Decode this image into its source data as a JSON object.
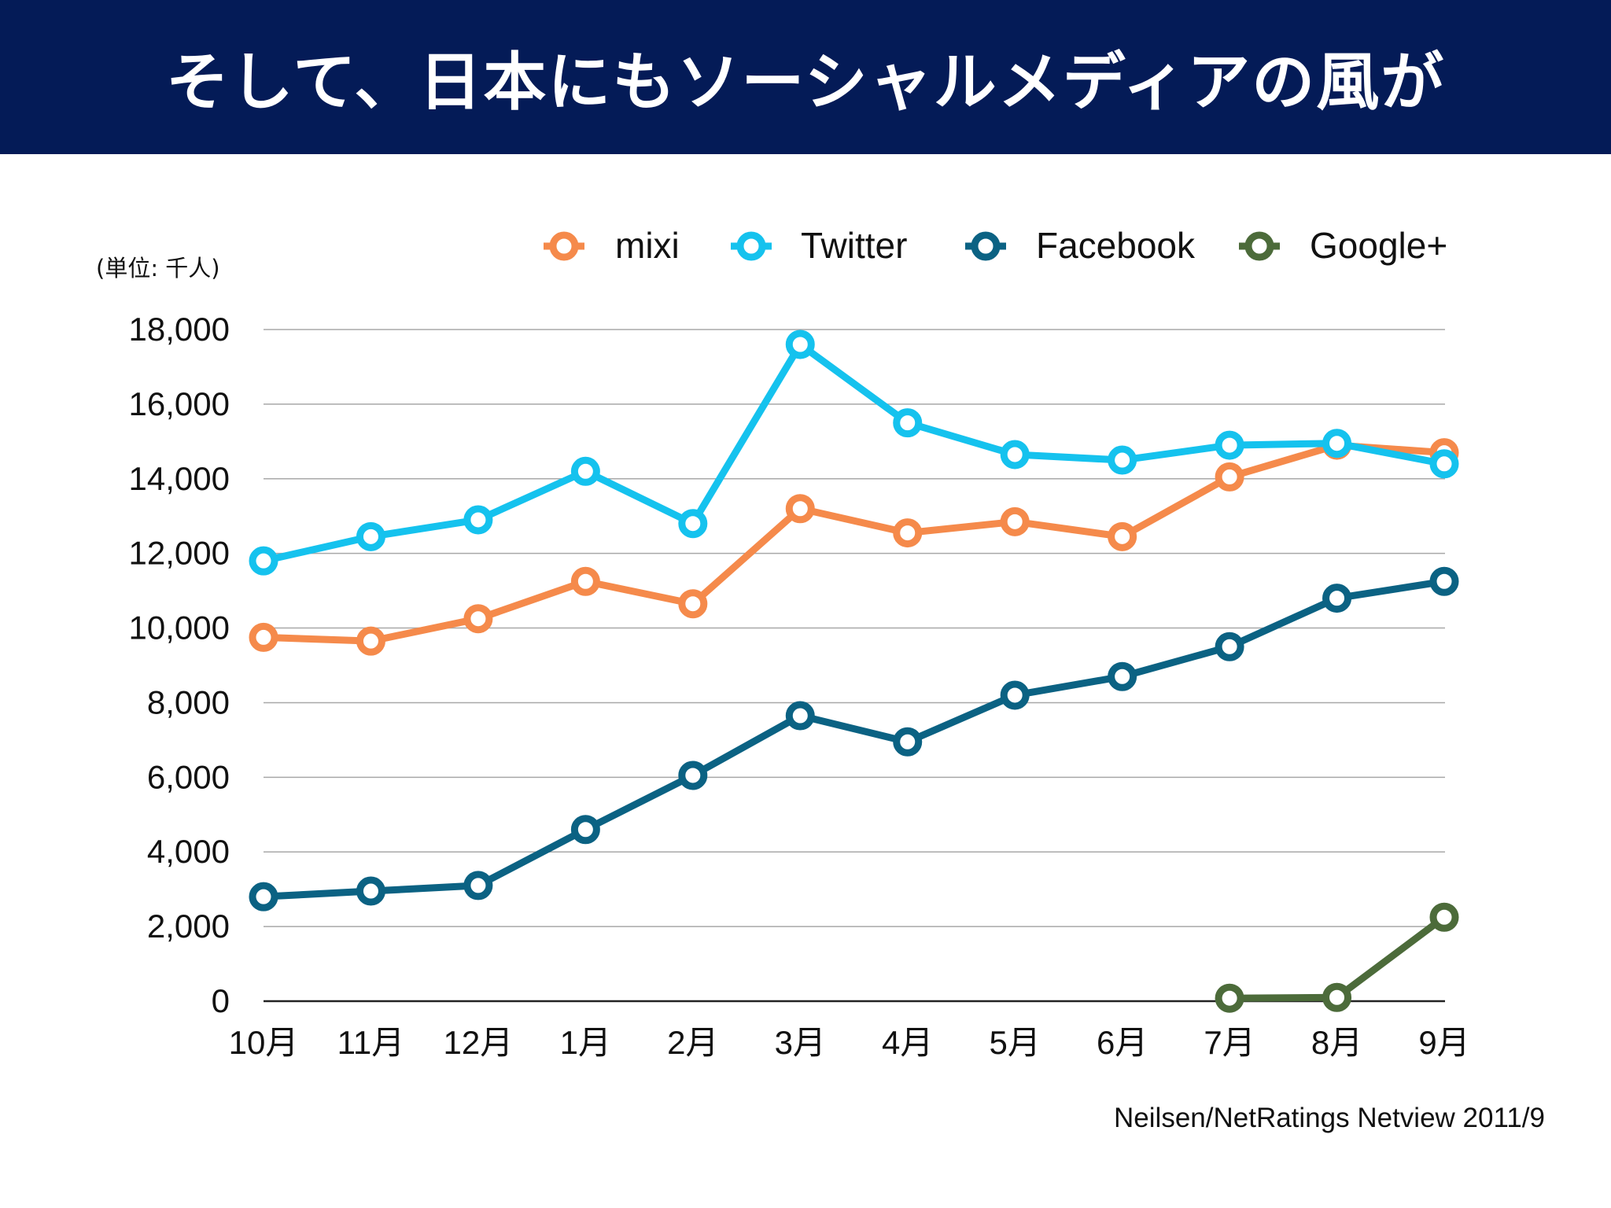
{
  "header": {
    "title": "そして、日本にもソーシャルメディアの風が"
  },
  "unit_label": "(単位: 千人)",
  "source": "Neilsen/NetRatings Netview 2011/9",
  "colors": {
    "header_bg": "#041b57",
    "mixi": "#f58a4b",
    "Twitter": "#15c2ee",
    "Facebook": "#0b6283",
    "Google+": "#4c6b3a"
  },
  "chart_data": {
    "type": "line",
    "categories": [
      "10月",
      "11月",
      "12月",
      "1月",
      "2月",
      "3月",
      "4月",
      "5月",
      "6月",
      "7月",
      "8月",
      "9月"
    ],
    "ylim": [
      0,
      18000
    ],
    "yticks": [
      0,
      2000,
      4000,
      6000,
      8000,
      10000,
      12000,
      14000,
      16000,
      18000
    ],
    "ytick_labels": [
      "0",
      "2,000",
      "4,000",
      "6,000",
      "8,000",
      "10,000",
      "12,000",
      "14,000",
      "16,000",
      "18,000"
    ],
    "grid": true,
    "legend_position": "top-right",
    "series": [
      {
        "name": "mixi",
        "color": "#f58a4b",
        "values": [
          9750,
          9650,
          10250,
          11250,
          10650,
          13200,
          12550,
          12850,
          12450,
          14050,
          14900,
          14700
        ]
      },
      {
        "name": "Twitter",
        "color": "#15c2ee",
        "values": [
          11800,
          12450,
          12900,
          14200,
          12800,
          17600,
          15500,
          14650,
          14500,
          14900,
          14950,
          14400
        ]
      },
      {
        "name": "Facebook",
        "color": "#0b6283",
        "values": [
          2800,
          2950,
          3100,
          4600,
          6050,
          7650,
          6950,
          8200,
          8700,
          9500,
          10800,
          11250
        ]
      },
      {
        "name": "Google+",
        "color": "#4c6b3a",
        "values": [
          null,
          null,
          null,
          null,
          null,
          null,
          null,
          null,
          null,
          80,
          100,
          2250
        ]
      }
    ]
  }
}
